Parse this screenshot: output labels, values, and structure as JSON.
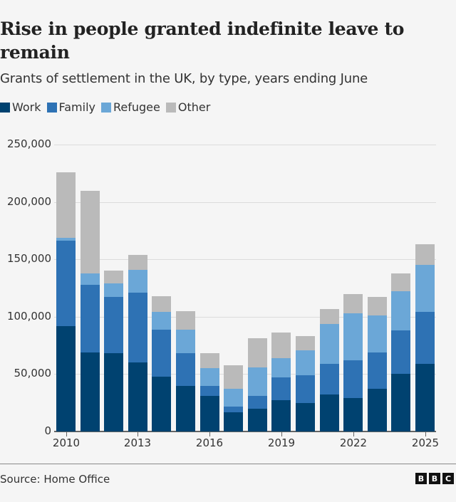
{
  "header": {
    "title": "Rise in people granted indefinite leave to remain",
    "subtitle": "Grants of settlement in the UK, by type, years ending June"
  },
  "legend": [
    {
      "label": "Work",
      "color": "#004270"
    },
    {
      "label": "Family",
      "color": "#2e72b4"
    },
    {
      "label": "Refugee",
      "color": "#6ba7d7"
    },
    {
      "label": "Other",
      "color": "#bababa"
    }
  ],
  "footer": {
    "source": "Source: Home Office",
    "logo_letters": [
      "B",
      "B",
      "C"
    ]
  },
  "chart_data": {
    "type": "bar",
    "stacked": true,
    "title": "Rise in people granted indefinite leave to remain",
    "subtitle": "Grants of settlement in the UK, by type, years ending June",
    "xlabel": "",
    "ylabel": "",
    "ylim": [
      0,
      250000
    ],
    "yticks": [
      0,
      50000,
      100000,
      150000,
      200000,
      250000
    ],
    "ytick_labels": [
      "0",
      "50,000",
      "100,000",
      "150,000",
      "200,000",
      "250,000"
    ],
    "xtick_labels": [
      "2010",
      "2013",
      "2016",
      "2019",
      "2022",
      "2025"
    ],
    "grid": true,
    "legend_position": "top-left",
    "categories": [
      "2010",
      "2011",
      "2012",
      "2013",
      "2014",
      "2015",
      "2016",
      "2017",
      "2018",
      "2019",
      "2020",
      "2021",
      "2022",
      "2023",
      "2024",
      "2025"
    ],
    "series": [
      {
        "name": "Work",
        "color": "#004270",
        "values": [
          92000,
          69000,
          68000,
          60000,
          48000,
          40000,
          31000,
          17000,
          20000,
          27000,
          25000,
          32000,
          29000,
          37000,
          50000,
          59000
        ]
      },
      {
        "name": "Family",
        "color": "#2e72b4",
        "values": [
          74000,
          59000,
          49000,
          61000,
          41000,
          28000,
          9000,
          5000,
          11000,
          20000,
          24000,
          27000,
          33000,
          32000,
          38000,
          45000
        ]
      },
      {
        "name": "Refugee",
        "color": "#6ba7d7",
        "values": [
          3000,
          10000,
          12000,
          20000,
          15000,
          21000,
          15000,
          15000,
          25000,
          17000,
          22000,
          35000,
          41000,
          32000,
          34000,
          41000
        ]
      },
      {
        "name": "Other",
        "color": "#bababa",
        "values": [
          57000,
          72000,
          11000,
          13000,
          14000,
          16000,
          13000,
          21000,
          25000,
          22000,
          12000,
          13000,
          17000,
          16000,
          16000,
          18000
        ]
      }
    ],
    "totals": [
      226000,
      210000,
      140000,
      154000,
      118000,
      105000,
      68000,
      58000,
      81000,
      86000,
      83000,
      107000,
      120000,
      117000,
      138000,
      163000
    ],
    "source": "Source: Home Office"
  }
}
